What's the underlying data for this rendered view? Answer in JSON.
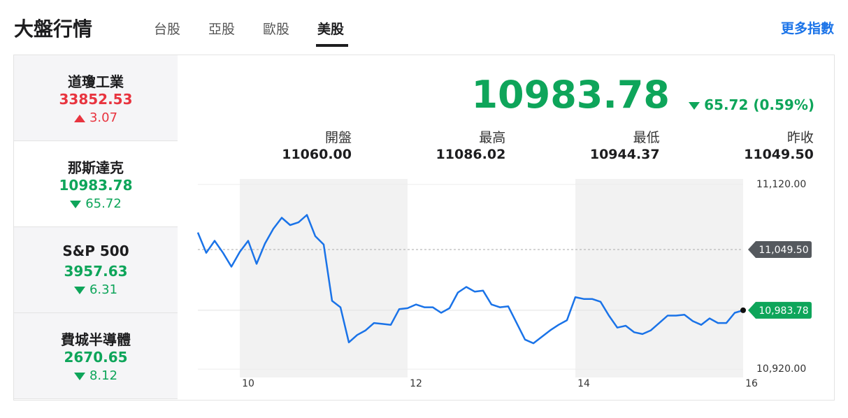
{
  "header": {
    "title": "大盤行情",
    "tabs": [
      "台股",
      "亞股",
      "歐股",
      "美股"
    ],
    "active_tab": 3,
    "more": "更多指數"
  },
  "indices": [
    {
      "name": "道瓊工業",
      "value": "33852.53",
      "change": "3.07",
      "direction": "up",
      "active": false
    },
    {
      "name": "那斯達克",
      "value": "10983.78",
      "change": "65.72",
      "direction": "down",
      "active": true
    },
    {
      "name": "S&P 500",
      "value": "3957.63",
      "change": "6.31",
      "direction": "down",
      "active": false
    },
    {
      "name": "費城半導體",
      "value": "2670.65",
      "change": "8.12",
      "direction": "down",
      "active": false
    }
  ],
  "quote": {
    "price": "10983.78",
    "change": "65.72 (0.59%)",
    "direction": "down",
    "stats": [
      {
        "label": "開盤",
        "value": "11060.00"
      },
      {
        "label": "最高",
        "value": "11086.02"
      },
      {
        "label": "最低",
        "value": "10944.37"
      },
      {
        "label": "昨收",
        "value": "11049.50"
      }
    ]
  },
  "chart_data": {
    "type": "line",
    "color": "#1a73e8",
    "x": [
      9.5,
      9.6,
      9.7,
      9.8,
      9.9,
      10.0,
      10.1,
      10.2,
      10.3,
      10.4,
      10.5,
      10.6,
      10.7,
      10.8,
      10.9,
      11.0,
      11.1,
      11.2,
      11.3,
      11.4,
      11.5,
      11.6,
      11.7,
      11.8,
      11.9,
      12.0,
      12.1,
      12.2,
      12.3,
      12.4,
      12.5,
      12.6,
      12.7,
      12.8,
      12.9,
      13.0,
      13.1,
      13.2,
      13.3,
      13.4,
      13.5,
      13.6,
      13.7,
      13.8,
      13.9,
      14.0,
      14.1,
      14.2,
      14.3,
      14.4,
      14.5,
      14.6,
      14.7,
      14.8,
      14.9,
      15.0,
      15.1,
      15.2,
      15.3,
      15.4,
      15.5,
      15.6,
      15.7,
      15.8,
      15.9,
      16.0
    ],
    "values": [
      11068,
      11046,
      11059,
      11046,
      11031,
      11047,
      11059,
      11034,
      11056,
      11072,
      11084,
      11076,
      11079,
      11087,
      11064,
      11055,
      10994,
      10987,
      10949,
      10957,
      10962,
      10970,
      10969,
      10968,
      10985,
      10986,
      10990,
      10987,
      10987,
      10981,
      10986,
      11003,
      11009,
      11004,
      11005,
      10990,
      10987,
      10988,
      10970,
      10952,
      10948,
      10955,
      10962,
      10968,
      10973,
      10998,
      10996,
      10996,
      10993,
      10978,
      10965,
      10967,
      10960,
      10958,
      10962,
      10970,
      10978,
      10978,
      10979,
      10972,
      10968,
      10975,
      10970,
      10970,
      10981,
      10983.78
    ],
    "xlim": [
      9.5,
      16
    ],
    "xticks": [
      10,
      12,
      14,
      16
    ],
    "ylim": [
      10911,
      11126
    ],
    "yticks": [
      {
        "value": 10920,
        "label": "10,920.00"
      },
      {
        "value": 11120,
        "label": "11,120.00"
      }
    ],
    "grid": true,
    "reference_lines": [
      {
        "value": 11049.5,
        "label": "11,049.50",
        "color": "#55595e",
        "style": "dashed"
      },
      {
        "value": 10983.78,
        "label": "10,983.78",
        "color": "#0ea55a",
        "style": "solid"
      }
    ]
  }
}
